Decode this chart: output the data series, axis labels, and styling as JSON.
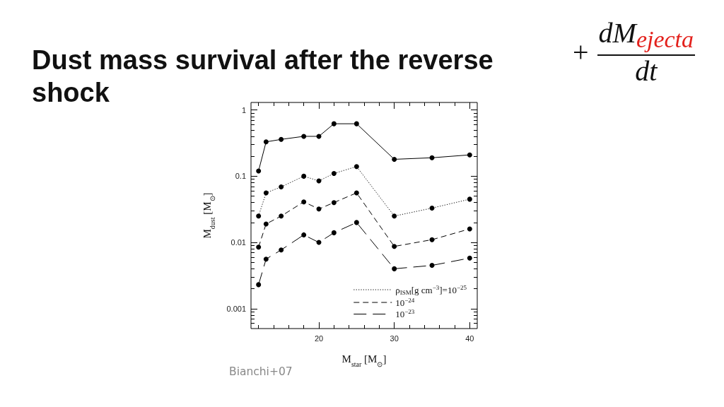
{
  "chart_data": {
    "type": "line",
    "title": "Dust mass survival after the reverse shock",
    "xlabel": "M$_{star}$ [M$_{⊙}$]",
    "ylabel": "M$_{dust}$ [M$_{⊙}$]",
    "annotations": [
      "+ dM$_{ejecta}$ dt",
      "Bianchi+07"
    ],
    "x": [
      12,
      13,
      15,
      18,
      20,
      22,
      25,
      30,
      35,
      40
    ],
    "series": [
      {
        "color": "#000000",
        "line_style": "solid",
        "values": [
          0.12,
          0.33,
          0.36,
          0.4,
          0.4,
          0.62,
          0.62,
          0.18,
          0.19,
          0.21
        ]
      },
      {
        "name": "ρ$_{ISM}$[g cm$^{−3}$]=10$^{−25}$",
        "color": "#000000",
        "line_style": "dotted",
        "values": [
          0.025,
          0.056,
          0.069,
          0.1,
          0.085,
          0.11,
          0.14,
          0.025,
          0.033,
          0.045
        ]
      },
      {
        "name": "10$^{−24}$",
        "color": "#000000",
        "line_style": "dashed",
        "values": [
          0.0085,
          0.019,
          0.025,
          0.041,
          0.032,
          0.04,
          0.056,
          0.0087,
          0.011,
          0.016
        ]
      },
      {
        "name": "10$^{−23}$",
        "color": "#000000",
        "line_style": "dashed",
        "values": [
          0.0023,
          0.0056,
          0.0077,
          0.013,
          0.01,
          0.014,
          0.02,
          0.004,
          0.0045,
          0.0058
        ]
      }
    ],
    "xlim": [
      11,
      41
    ],
    "xticks": [
      {
        "value": 12,
        "label": null
      },
      {
        "value": 14,
        "label": null
      },
      {
        "value": 16,
        "label": null
      },
      {
        "value": 18,
        "label": null
      },
      20,
      {
        "value": 22,
        "label": null
      },
      {
        "value": 24,
        "label": null
      },
      {
        "value": 26,
        "label": null
      },
      {
        "value": 28,
        "label": null
      },
      30,
      {
        "value": 32,
        "label": null
      },
      {
        "value": 34,
        "label": null
      },
      {
        "value": 36,
        "label": null
      },
      {
        "value": 38,
        "label": null
      },
      40
    ],
    "ylim": [
      0.0005,
      1.3
    ],
    "yticks": [
      {
        "value": 0.0006,
        "label": null
      },
      {
        "value": 0.0007,
        "label": null
      },
      {
        "value": 0.0008,
        "label": null
      },
      {
        "value": 0.0009,
        "label": null
      },
      0.001,
      {
        "value": 0.002,
        "label": null
      },
      {
        "value": 0.003,
        "label": null
      },
      {
        "value": 0.004,
        "label": null
      },
      {
        "value": 0.005,
        "label": null
      },
      {
        "value": 0.006,
        "label": null
      },
      {
        "value": 0.007,
        "label": null
      },
      {
        "value": 0.008,
        "label": null
      },
      {
        "value": 0.009,
        "label": null
      },
      0.01,
      {
        "value": 0.02,
        "label": null
      },
      {
        "value": 0.03,
        "label": null
      },
      {
        "value": 0.04,
        "label": null
      },
      {
        "value": 0.05,
        "label": null
      },
      {
        "value": 0.06,
        "label": null
      },
      {
        "value": 0.07,
        "label": null
      },
      {
        "value": 0.08,
        "label": null
      },
      {
        "value": 0.09,
        "label": null
      },
      0.1,
      {
        "value": 0.2,
        "label": null
      },
      {
        "value": 0.3,
        "label": null
      },
      {
        "value": 0.4,
        "label": null
      },
      {
        "value": 0.5,
        "label": null
      },
      {
        "value": 0.6,
        "label": null
      },
      {
        "value": 0.7,
        "label": null
      },
      {
        "value": 0.8,
        "label": null
      },
      {
        "value": 0.9,
        "label": null
      },
      1
    ],
    "log": true,
    "grid": false,
    "legend": "bottom right",
    "marker": "circle"
  }
}
